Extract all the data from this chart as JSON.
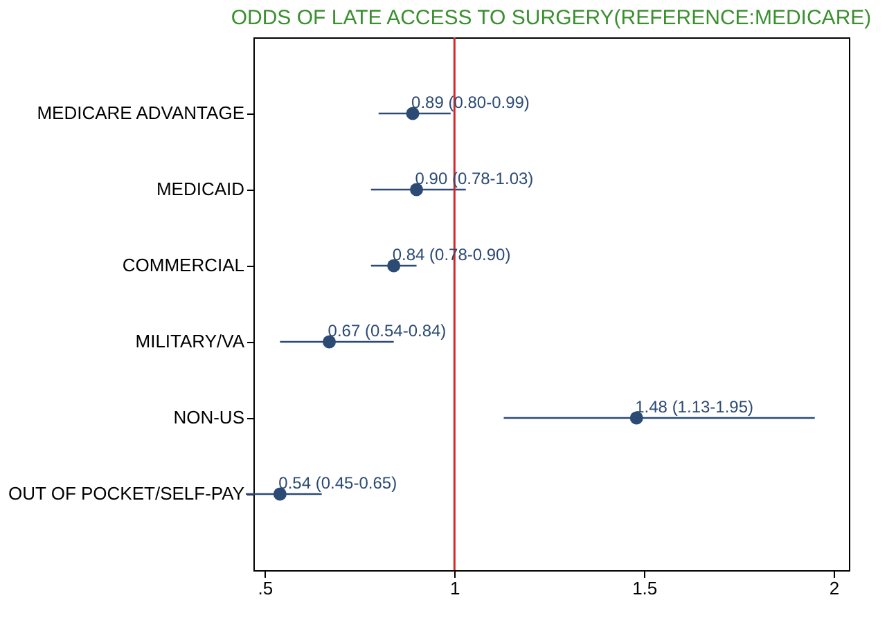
{
  "chart_data": {
    "type": "scatter",
    "orientation": "horizontal",
    "title": "ODDS OF LATE ACCESS TO SURGERY(REFERENCE:MEDICARE)",
    "categories": [
      "MEDICARE ADVANTAGE",
      "MEDICAID",
      "COMMERCIAL",
      "MILITARY/VA",
      "NON-US",
      "OUT OF POCKET/SELF-PAY"
    ],
    "values": [
      0.89,
      0.9,
      0.84,
      0.67,
      1.48,
      0.54
    ],
    "errors": [
      [
        0.8,
        0.99
      ],
      [
        0.78,
        1.03
      ],
      [
        0.78,
        0.9
      ],
      [
        0.54,
        0.84
      ],
      [
        1.13,
        1.95
      ],
      [
        0.45,
        0.65
      ]
    ],
    "value_labels": [
      "0.89 (0.80-0.99)",
      "0.90 (0.78-1.03)",
      "0.84 (0.78-0.90)",
      "0.67 (0.54-0.84)",
      "1.48 (1.13-1.95)",
      "0.54 (0.45-0.65)"
    ],
    "color": "#2b4a74",
    "marker": "circle",
    "xlim": [
      0.47,
      2.04
    ],
    "xticks": [
      {
        "value": 0.5,
        "label": ".5"
      },
      1,
      1.5,
      2
    ],
    "ref_lines": [
      {
        "axis": "x",
        "value": 1,
        "color": "#d62728"
      }
    ]
  }
}
